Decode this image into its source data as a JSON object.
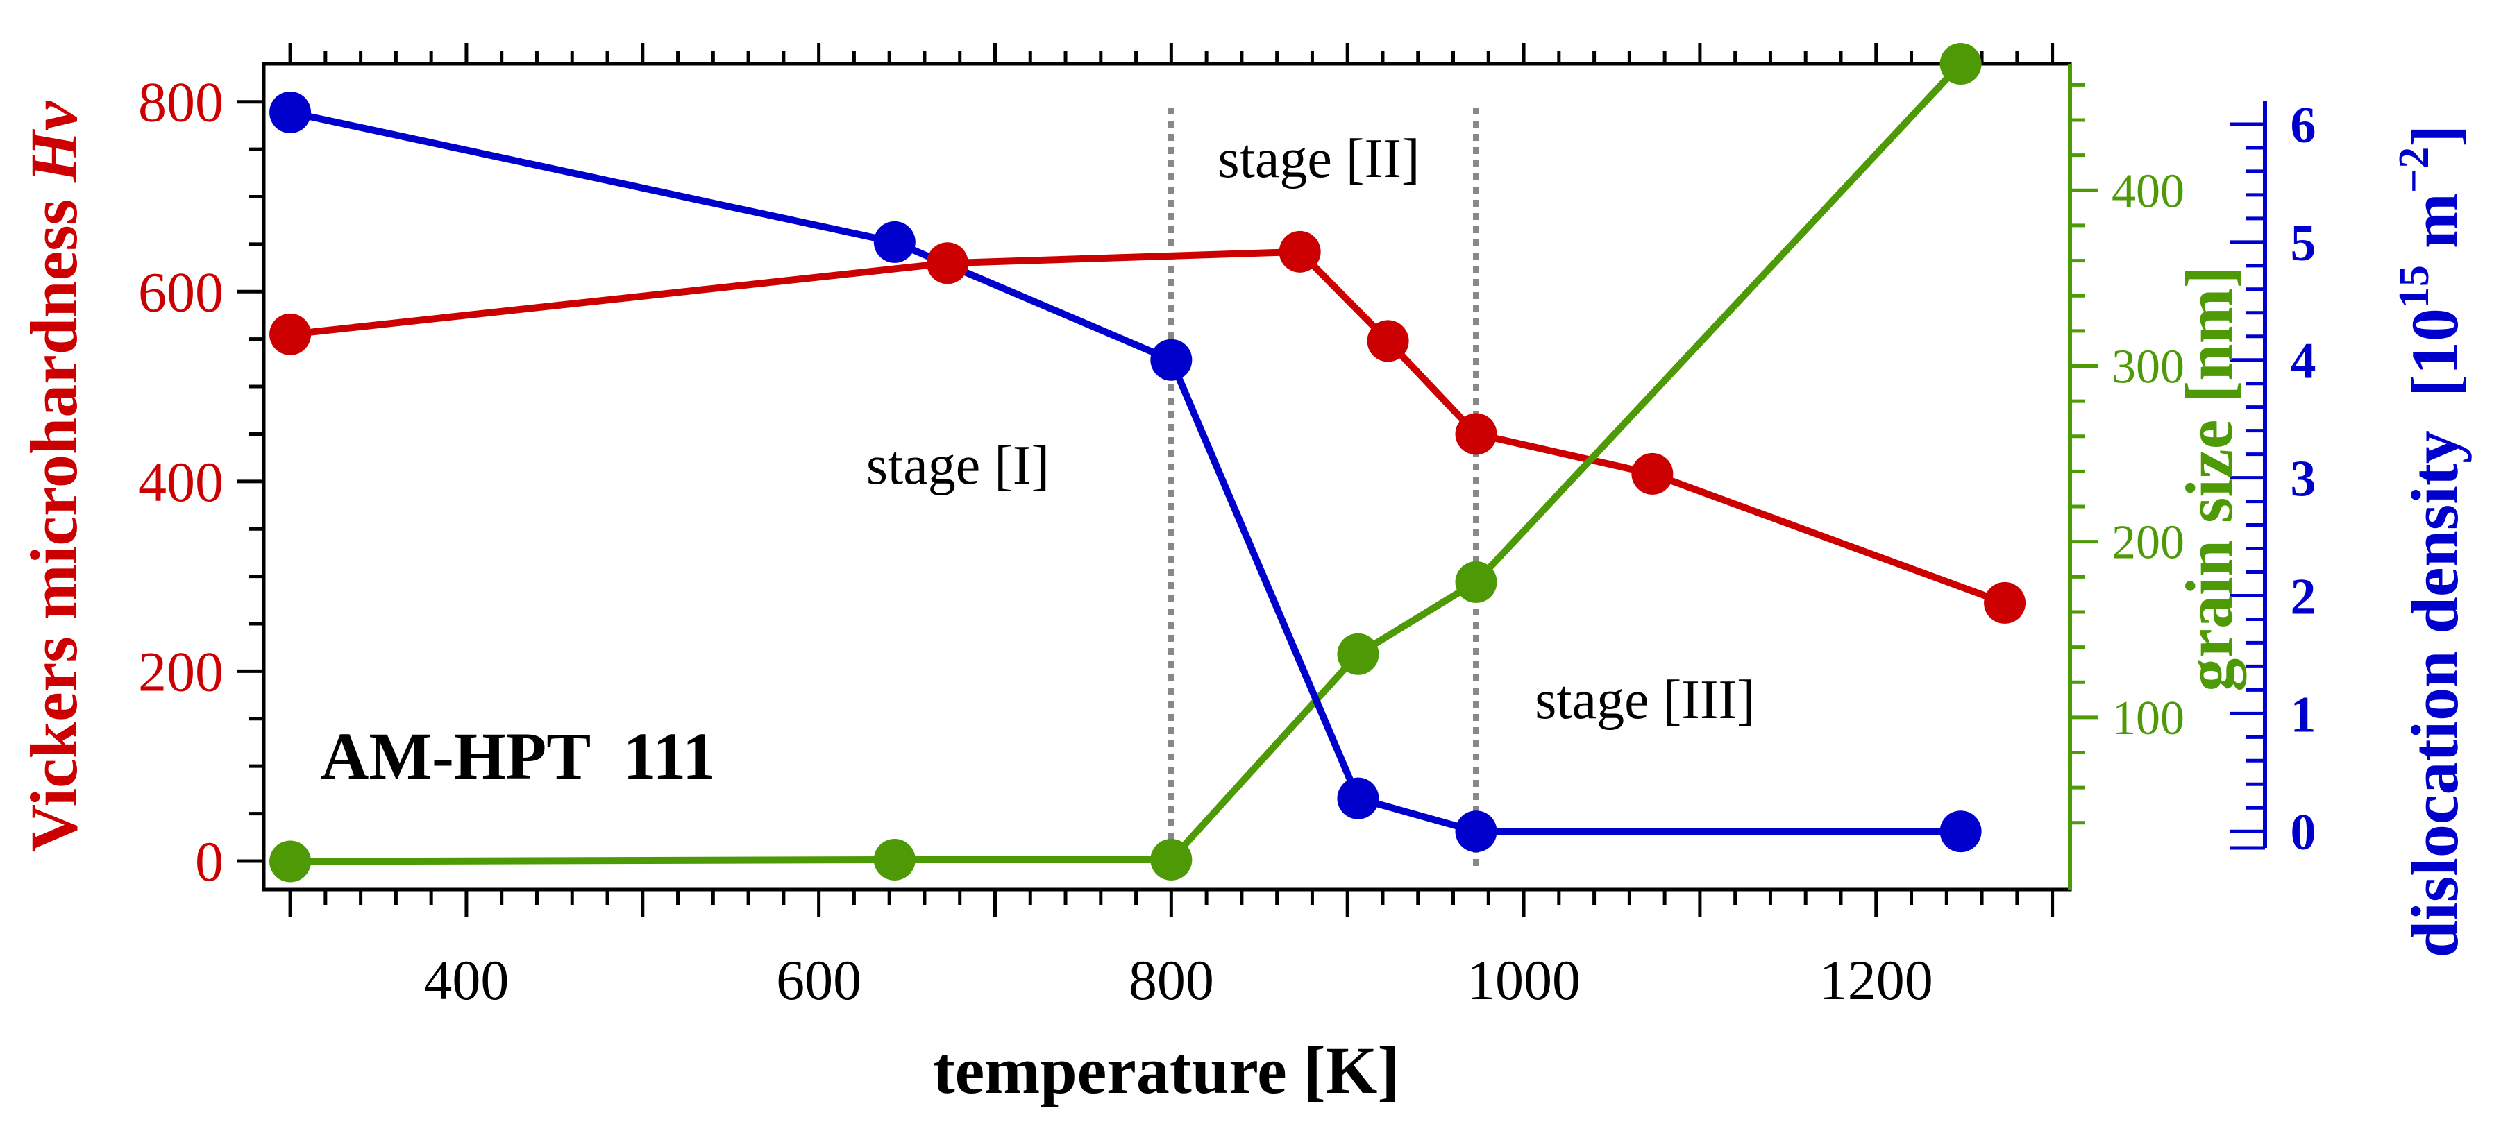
{
  "chart_data": {
    "type": "line",
    "x_axis": {
      "label": "temperature [K]",
      "range": [
        285,
        1310
      ],
      "major_ticks": [
        400,
        600,
        800,
        1000,
        1200
      ],
      "minor_step": 20
    },
    "y_axes": {
      "left": {
        "label_prefix": "Vickers microhardness ",
        "label_italic": "Hv",
        "range": [
          -30,
          840
        ],
        "major_ticks": [
          0,
          200,
          400,
          600,
          800
        ],
        "minor_step": 50,
        "color": "#cc0000"
      },
      "right_inner": {
        "label": "grain size [nm]",
        "range": [
          2,
          472
        ],
        "major_ticks": [
          100,
          200,
          300,
          400
        ],
        "minor_step": 20,
        "color": "#4e9a06"
      },
      "right_outer": {
        "label": "dislocation density  [10",
        "label_sup": "15",
        "label_mid": " m",
        "label_sup2": "−2",
        "label_end": "]",
        "range": [
          -0.14,
          6.2
        ],
        "major_ticks": [
          0,
          1,
          2,
          3,
          4,
          5,
          6
        ],
        "minor_step": 0.2,
        "color": "#0000cc"
      }
    },
    "series": [
      {
        "name": "Vickers microhardness Hv",
        "axis": "left",
        "color": "#cc0000",
        "x": [
          300,
          673,
          873,
          923,
          973,
          1073,
          1273
        ],
        "y": [
          555,
          630,
          642,
          548,
          450,
          408,
          272
        ]
      },
      {
        "name": "grain size",
        "axis": "right_inner",
        "color": "#4e9a06",
        "x": [
          300,
          643,
          800,
          906,
          973,
          1248
        ],
        "y": [
          18,
          19,
          19,
          136,
          177,
          472
        ]
      },
      {
        "name": "dislocation density",
        "axis": "right_outer",
        "color": "#0000cc",
        "x": [
          300,
          643,
          800,
          906,
          973,
          1248
        ],
        "y": [
          6.1,
          5.0,
          4.0,
          0.28,
          0.0,
          0.0
        ]
      }
    ],
    "vlines": [
      800,
      973
    ],
    "annotations": [
      "stage [I]",
      "stage [II]",
      "stage [III]",
      "AM-HPT  111"
    ],
    "grid": false
  }
}
